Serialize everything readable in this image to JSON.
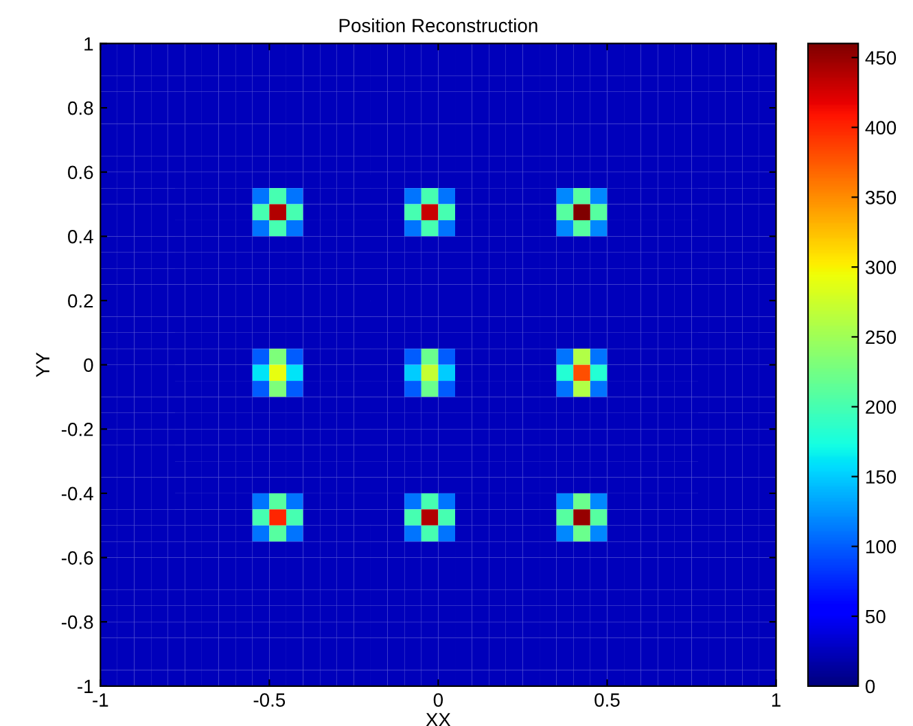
{
  "chart_data": {
    "type": "heatmap",
    "title": "Position Reconstruction",
    "xlabel": "XX",
    "ylabel": "YY",
    "xlim": [
      -1,
      1
    ],
    "ylim": [
      -1,
      1
    ],
    "xticks": [
      -1,
      -0.5,
      0,
      0.5,
      1
    ],
    "yticks": [
      -1,
      -0.8,
      -0.6,
      -0.4,
      -0.2,
      0,
      0.2,
      0.4,
      0.6,
      0.8,
      1
    ],
    "clim": [
      0,
      460
    ],
    "cticks": [
      0,
      50,
      100,
      150,
      200,
      250,
      300,
      350,
      400,
      450
    ],
    "grid": false,
    "cells": [
      [
        25,
        25,
        25,
        25,
        25,
        25,
        25,
        25,
        25,
        25,
        25,
        25,
        25,
        25,
        25,
        25,
        25,
        25,
        25,
        25,
        25,
        25,
        25,
        25,
        25,
        25,
        25,
        25,
        25,
        25,
        25,
        25,
        25,
        25,
        25,
        25,
        25,
        25,
        25,
        25
      ],
      [
        25,
        25,
        25,
        25,
        25,
        25,
        25,
        25,
        25,
        25,
        25,
        25,
        25,
        25,
        25,
        25,
        25,
        25,
        25,
        25,
        25,
        25,
        25,
        25,
        25,
        25,
        25,
        25,
        25,
        25,
        25,
        25,
        25,
        25,
        25,
        25,
        25,
        25,
        25,
        25
      ],
      [
        25,
        25,
        25,
        25,
        25,
        25,
        25,
        25,
        25,
        25,
        25,
        25,
        25,
        25,
        25,
        25,
        25,
        25,
        25,
        25,
        25,
        25,
        25,
        25,
        25,
        25,
        25,
        25,
        25,
        25,
        25,
        25,
        25,
        25,
        25,
        25,
        25,
        25,
        25,
        25
      ],
      [
        25,
        25,
        25,
        25,
        25,
        25,
        25,
        25,
        25,
        25,
        25,
        25,
        25,
        25,
        25,
        25,
        25,
        25,
        25,
        25,
        25,
        25,
        25,
        25,
        25,
        25,
        25,
        25,
        25,
        25,
        25,
        25,
        25,
        25,
        25,
        25,
        25,
        25,
        25,
        25
      ],
      [
        25,
        25,
        25,
        25,
        25,
        25,
        25,
        25,
        25,
        25,
        25,
        25,
        25,
        25,
        25,
        25,
        25,
        25,
        25,
        25,
        25,
        25,
        25,
        25,
        25,
        25,
        25,
        25,
        25,
        25,
        25,
        25,
        25,
        25,
        25,
        25,
        25,
        25,
        25,
        25
      ],
      [
        25,
        25,
        25,
        25,
        25,
        25,
        25,
        25,
        25,
        25,
        25,
        25,
        25,
        25,
        25,
        25,
        25,
        25,
        25,
        25,
        25,
        25,
        25,
        25,
        25,
        25,
        25,
        25,
        25,
        25,
        25,
        25,
        25,
        25,
        25,
        25,
        25,
        25,
        25,
        25
      ],
      [
        25,
        25,
        25,
        25,
        25,
        25,
        25,
        25,
        25,
        25,
        25,
        25,
        25,
        25,
        25,
        25,
        25,
        25,
        25,
        25,
        25,
        25,
        25,
        25,
        25,
        25,
        25,
        25,
        25,
        25,
        25,
        25,
        25,
        25,
        25,
        25,
        25,
        25,
        25,
        25
      ],
      [
        25,
        25,
        25,
        25,
        25,
        25,
        25,
        25,
        25,
        25,
        25,
        25,
        25,
        25,
        25,
        25,
        25,
        25,
        25,
        25,
        25,
        25,
        25,
        25,
        25,
        25,
        25,
        25,
        25,
        25,
        25,
        25,
        25,
        25,
        25,
        25,
        25,
        25,
        25,
        25
      ],
      [
        25,
        25,
        25,
        25,
        25,
        25,
        25,
        25,
        25,
        25,
        25,
        25,
        25,
        25,
        25,
        25,
        25,
        25,
        25,
        25,
        25,
        25,
        25,
        25,
        25,
        25,
        25,
        25,
        25,
        25,
        25,
        25,
        25,
        25,
        25,
        25,
        25,
        25,
        25,
        25
      ],
      [
        25,
        25,
        25,
        25,
        25,
        25,
        25,
        25,
        25,
        110,
        200,
        110,
        25,
        25,
        25,
        25,
        25,
        25,
        110,
        200,
        110,
        25,
        25,
        25,
        25,
        25,
        25,
        120,
        210,
        120,
        25,
        25,
        25,
        25,
        25,
        25,
        25,
        25,
        25,
        25
      ],
      [
        25,
        25,
        25,
        25,
        25,
        25,
        25,
        25,
        25,
        200,
        440,
        200,
        25,
        25,
        25,
        25,
        25,
        25,
        200,
        430,
        200,
        25,
        25,
        25,
        25,
        25,
        25,
        210,
        460,
        210,
        25,
        25,
        25,
        25,
        25,
        25,
        25,
        25,
        25,
        25
      ],
      [
        25,
        25,
        25,
        25,
        25,
        25,
        25,
        25,
        25,
        110,
        200,
        110,
        25,
        25,
        25,
        25,
        25,
        25,
        110,
        200,
        110,
        25,
        25,
        25,
        25,
        25,
        25,
        120,
        210,
        120,
        25,
        25,
        25,
        25,
        25,
        25,
        25,
        25,
        25,
        25
      ],
      [
        25,
        25,
        25,
        25,
        25,
        25,
        25,
        25,
        25,
        25,
        25,
        25,
        25,
        25,
        25,
        25,
        25,
        25,
        25,
        25,
        25,
        25,
        25,
        25,
        25,
        25,
        25,
        25,
        25,
        25,
        25,
        25,
        25,
        25,
        25,
        25,
        25,
        25,
        25,
        25
      ],
      [
        25,
        25,
        25,
        25,
        25,
        25,
        25,
        25,
        25,
        25,
        25,
        25,
        25,
        25,
        25,
        25,
        25,
        25,
        25,
        25,
        25,
        25,
        25,
        25,
        25,
        25,
        25,
        25,
        25,
        25,
        25,
        25,
        25,
        25,
        25,
        25,
        25,
        25,
        25,
        25
      ],
      [
        25,
        25,
        25,
        25,
        25,
        25,
        25,
        25,
        25,
        25,
        25,
        25,
        25,
        25,
        25,
        25,
        25,
        25,
        25,
        25,
        25,
        25,
        25,
        25,
        25,
        25,
        25,
        25,
        25,
        25,
        25,
        25,
        25,
        25,
        25,
        25,
        25,
        25,
        25,
        25
      ],
      [
        25,
        25,
        25,
        25,
        25,
        25,
        25,
        25,
        25,
        25,
        25,
        25,
        25,
        25,
        25,
        25,
        25,
        25,
        25,
        25,
        25,
        25,
        25,
        25,
        25,
        25,
        25,
        25,
        25,
        25,
        25,
        25,
        25,
        25,
        25,
        25,
        25,
        25,
        25,
        25
      ],
      [
        25,
        25,
        25,
        25,
        25,
        25,
        25,
        25,
        25,
        25,
        25,
        25,
        25,
        25,
        25,
        25,
        25,
        25,
        25,
        25,
        25,
        25,
        25,
        25,
        25,
        25,
        25,
        25,
        25,
        25,
        25,
        25,
        25,
        25,
        25,
        25,
        25,
        25,
        25,
        25
      ],
      [
        25,
        25,
        25,
        25,
        25,
        25,
        25,
        25,
        25,
        25,
        25,
        25,
        25,
        25,
        25,
        25,
        25,
        25,
        25,
        25,
        25,
        25,
        25,
        25,
        25,
        25,
        25,
        25,
        25,
        25,
        25,
        25,
        25,
        25,
        25,
        25,
        25,
        25,
        25,
        25
      ],
      [
        25,
        25,
        25,
        25,
        25,
        25,
        25,
        25,
        25,
        25,
        25,
        25,
        25,
        25,
        25,
        25,
        25,
        25,
        25,
        25,
        25,
        25,
        25,
        25,
        25,
        25,
        25,
        25,
        25,
        25,
        25,
        25,
        25,
        25,
        25,
        25,
        25,
        25,
        25,
        25
      ],
      [
        25,
        25,
        25,
        25,
        25,
        25,
        25,
        25,
        25,
        100,
        230,
        100,
        25,
        25,
        25,
        25,
        25,
        25,
        100,
        220,
        100,
        25,
        25,
        25,
        25,
        25,
        25,
        110,
        260,
        110,
        25,
        25,
        25,
        25,
        25,
        25,
        25,
        25,
        25,
        25
      ],
      [
        25,
        25,
        25,
        25,
        25,
        25,
        25,
        25,
        25,
        160,
        290,
        160,
        25,
        25,
        25,
        25,
        25,
        25,
        150,
        270,
        150,
        25,
        25,
        25,
        25,
        25,
        25,
        180,
        380,
        180,
        25,
        25,
        25,
        25,
        25,
        25,
        25,
        25,
        25,
        25
      ],
      [
        25,
        25,
        25,
        25,
        25,
        25,
        25,
        25,
        25,
        100,
        230,
        100,
        25,
        25,
        25,
        25,
        25,
        25,
        100,
        220,
        100,
        25,
        25,
        25,
        25,
        25,
        25,
        110,
        260,
        110,
        25,
        25,
        25,
        25,
        25,
        25,
        25,
        25,
        25,
        25
      ],
      [
        25,
        25,
        25,
        25,
        25,
        25,
        25,
        25,
        25,
        25,
        25,
        25,
        25,
        25,
        25,
        25,
        25,
        25,
        25,
        25,
        25,
        25,
        25,
        25,
        25,
        25,
        25,
        25,
        25,
        25,
        25,
        25,
        25,
        25,
        25,
        25,
        25,
        25,
        25,
        25
      ],
      [
        25,
        25,
        25,
        25,
        25,
        25,
        25,
        25,
        25,
        25,
        25,
        25,
        25,
        25,
        25,
        25,
        25,
        25,
        25,
        25,
        25,
        25,
        25,
        25,
        25,
        25,
        25,
        25,
        25,
        25,
        25,
        25,
        25,
        25,
        25,
        25,
        25,
        25,
        25,
        25
      ],
      [
        25,
        25,
        25,
        25,
        25,
        25,
        25,
        25,
        25,
        25,
        25,
        25,
        25,
        25,
        25,
        25,
        25,
        25,
        25,
        25,
        25,
        25,
        25,
        25,
        25,
        25,
        25,
        25,
        25,
        25,
        25,
        25,
        25,
        25,
        25,
        25,
        25,
        25,
        25,
        25
      ],
      [
        25,
        25,
        25,
        25,
        25,
        25,
        25,
        25,
        25,
        25,
        25,
        25,
        25,
        25,
        25,
        25,
        25,
        25,
        25,
        25,
        25,
        25,
        25,
        25,
        25,
        25,
        25,
        25,
        25,
        25,
        25,
        25,
        25,
        25,
        25,
        25,
        25,
        25,
        25,
        25
      ],
      [
        25,
        25,
        25,
        25,
        25,
        25,
        25,
        25,
        25,
        25,
        25,
        25,
        25,
        25,
        25,
        25,
        25,
        25,
        25,
        25,
        25,
        25,
        25,
        25,
        25,
        25,
        25,
        25,
        25,
        25,
        25,
        25,
        25,
        25,
        25,
        25,
        25,
        25,
        25,
        25
      ],
      [
        25,
        25,
        25,
        25,
        25,
        25,
        25,
        25,
        25,
        25,
        25,
        25,
        25,
        25,
        25,
        25,
        25,
        25,
        25,
        25,
        25,
        25,
        25,
        25,
        25,
        25,
        25,
        25,
        25,
        25,
        25,
        25,
        25,
        25,
        25,
        25,
        25,
        25,
        25,
        25
      ],
      [
        25,
        25,
        25,
        25,
        25,
        25,
        25,
        25,
        25,
        110,
        210,
        110,
        25,
        25,
        25,
        25,
        25,
        25,
        110,
        200,
        110,
        25,
        25,
        25,
        25,
        25,
        25,
        120,
        220,
        120,
        25,
        25,
        25,
        25,
        25,
        25,
        25,
        25,
        25,
        25
      ],
      [
        25,
        25,
        25,
        25,
        25,
        25,
        25,
        25,
        25,
        200,
        400,
        200,
        25,
        25,
        25,
        25,
        25,
        25,
        200,
        440,
        200,
        25,
        25,
        25,
        25,
        25,
        25,
        210,
        450,
        210,
        25,
        25,
        25,
        25,
        25,
        25,
        25,
        25,
        25,
        25
      ],
      [
        25,
        25,
        25,
        25,
        25,
        25,
        25,
        25,
        25,
        110,
        210,
        110,
        25,
        25,
        25,
        25,
        25,
        25,
        110,
        200,
        110,
        25,
        25,
        25,
        25,
        25,
        25,
        120,
        220,
        120,
        25,
        25,
        25,
        25,
        25,
        25,
        25,
        25,
        25,
        25
      ],
      [
        25,
        25,
        25,
        25,
        25,
        25,
        25,
        25,
        25,
        25,
        25,
        25,
        25,
        25,
        25,
        25,
        25,
        25,
        25,
        25,
        25,
        25,
        25,
        25,
        25,
        25,
        25,
        25,
        25,
        25,
        25,
        25,
        25,
        25,
        25,
        25,
        25,
        25,
        25,
        25
      ],
      [
        25,
        25,
        25,
        25,
        25,
        25,
        25,
        25,
        25,
        25,
        25,
        25,
        25,
        25,
        25,
        25,
        25,
        25,
        25,
        25,
        25,
        25,
        25,
        25,
        25,
        25,
        25,
        25,
        25,
        25,
        25,
        25,
        25,
        25,
        25,
        25,
        25,
        25,
        25,
        25
      ],
      [
        25,
        25,
        25,
        25,
        25,
        25,
        25,
        25,
        25,
        25,
        25,
        25,
        25,
        25,
        25,
        25,
        25,
        25,
        25,
        25,
        25,
        25,
        25,
        25,
        25,
        25,
        25,
        25,
        25,
        25,
        25,
        25,
        25,
        25,
        25,
        25,
        25,
        25,
        25,
        25
      ],
      [
        25,
        25,
        25,
        25,
        25,
        25,
        25,
        25,
        25,
        25,
        25,
        25,
        25,
        25,
        25,
        25,
        25,
        25,
        25,
        25,
        25,
        25,
        25,
        25,
        25,
        25,
        25,
        25,
        25,
        25,
        25,
        25,
        25,
        25,
        25,
        25,
        25,
        25,
        25,
        25
      ],
      [
        25,
        25,
        25,
        25,
        25,
        25,
        25,
        25,
        25,
        25,
        25,
        25,
        25,
        25,
        25,
        25,
        25,
        25,
        25,
        25,
        25,
        25,
        25,
        25,
        25,
        25,
        25,
        25,
        25,
        25,
        25,
        25,
        25,
        25,
        25,
        25,
        25,
        25,
        25,
        25
      ],
      [
        25,
        25,
        25,
        25,
        25,
        25,
        25,
        25,
        25,
        25,
        25,
        25,
        25,
        25,
        25,
        25,
        25,
        25,
        25,
        25,
        25,
        25,
        25,
        25,
        25,
        25,
        25,
        25,
        25,
        25,
        25,
        25,
        25,
        25,
        25,
        25,
        25,
        25,
        25,
        25
      ],
      [
        25,
        25,
        25,
        25,
        25,
        25,
        25,
        25,
        25,
        25,
        25,
        25,
        25,
        25,
        25,
        25,
        25,
        25,
        25,
        25,
        25,
        25,
        25,
        25,
        25,
        25,
        25,
        25,
        25,
        25,
        25,
        25,
        25,
        25,
        25,
        25,
        25,
        25,
        25,
        25
      ],
      [
        25,
        25,
        25,
        25,
        25,
        25,
        25,
        25,
        25,
        25,
        25,
        25,
        25,
        25,
        25,
        25,
        25,
        25,
        25,
        25,
        25,
        25,
        25,
        25,
        25,
        25,
        25,
        25,
        25,
        25,
        25,
        25,
        25,
        25,
        25,
        25,
        25,
        25,
        25,
        25
      ],
      [
        25,
        25,
        25,
        25,
        25,
        25,
        25,
        25,
        25,
        25,
        25,
        25,
        25,
        25,
        25,
        25,
        25,
        25,
        25,
        25,
        25,
        25,
        25,
        25,
        25,
        25,
        25,
        25,
        25,
        25,
        25,
        25,
        25,
        25,
        25,
        25,
        25,
        25,
        25,
        25
      ]
    ]
  }
}
